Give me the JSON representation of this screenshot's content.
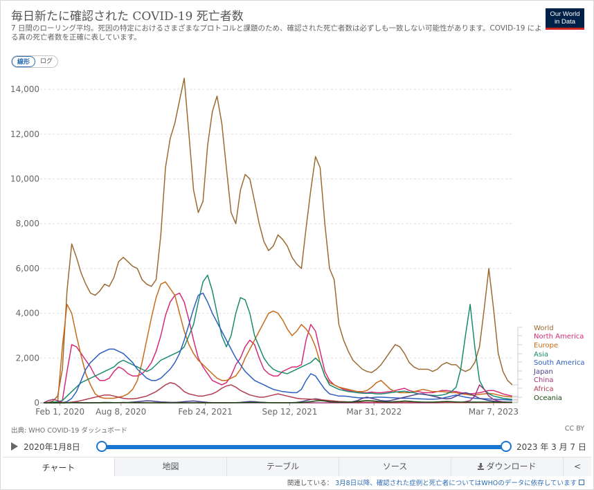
{
  "header": {
    "title": "毎日新たに確認された COVID-19 死亡者数",
    "subtitle": "7 日間のローリング平均。死因の特定におけるさまざまなプロトコルと課題のため、確認された死亡者数は必ずしも一致しない可能性があります。COVID-19 による真の死亡者数を正確に表しています。",
    "logo_line1": "Our World",
    "logo_line2": "in Data"
  },
  "scale_toggle": {
    "linear": "線形",
    "log": "ログ",
    "selected": "linear"
  },
  "chart_data": {
    "type": "line",
    "y_ticks": [
      "0",
      "2,000",
      "4,000",
      "6,000",
      "8,000",
      "10,000",
      "12,000",
      "14,000"
    ],
    "ylim": [
      0,
      14500
    ],
    "x_ticks": [
      "Feb 1, 2020",
      "Aug 8, 2020",
      "Feb 24, 2021",
      "Sep 12, 2021",
      "Mar 31, 2022",
      "Mar 7, 2023"
    ],
    "x_tick_pos": [
      0.035,
      0.165,
      0.345,
      0.525,
      0.705,
      0.96
    ],
    "grid": true,
    "legend": "right",
    "x": [
      0,
      0.01,
      0.02,
      0.03,
      0.04,
      0.05,
      0.06,
      0.07,
      0.08,
      0.09,
      0.1,
      0.11,
      0.12,
      0.13,
      0.14,
      0.15,
      0.16,
      0.17,
      0.18,
      0.19,
      0.2,
      0.21,
      0.22,
      0.23,
      0.24,
      0.25,
      0.26,
      0.27,
      0.28,
      0.29,
      0.3,
      0.31,
      0.32,
      0.33,
      0.34,
      0.35,
      0.36,
      0.37,
      0.38,
      0.39,
      0.4,
      0.41,
      0.42,
      0.43,
      0.44,
      0.45,
      0.46,
      0.47,
      0.48,
      0.49,
      0.5,
      0.51,
      0.52,
      0.53,
      0.54,
      0.55,
      0.56,
      0.57,
      0.58,
      0.59,
      0.6,
      0.61,
      0.62,
      0.63,
      0.64,
      0.65,
      0.66,
      0.67,
      0.68,
      0.69,
      0.7,
      0.71,
      0.72,
      0.73,
      0.74,
      0.75,
      0.76,
      0.77,
      0.78,
      0.79,
      0.8,
      0.81,
      0.82,
      0.83,
      0.84,
      0.85,
      0.86,
      0.87,
      0.88,
      0.89,
      0.9,
      0.91,
      0.92,
      0.93,
      0.94,
      0.95,
      0.96,
      0.97,
      0.98,
      0.99,
      1.0
    ],
    "series": [
      {
        "name": "World",
        "color": "#9a6a32",
        "values": [
          0,
          20,
          80,
          300,
          1500,
          5000,
          7100,
          6500,
          5800,
          5300,
          4900,
          4800,
          5000,
          5300,
          5200,
          5600,
          6300,
          6500,
          6300,
          6100,
          6000,
          5500,
          5300,
          5200,
          5500,
          7500,
          10500,
          11800,
          12500,
          13500,
          14500,
          12000,
          9500,
          8500,
          9000,
          11500,
          13000,
          13700,
          12500,
          10500,
          8500,
          8000,
          9500,
          10200,
          10000,
          9000,
          8000,
          7200,
          6800,
          7000,
          7500,
          7300,
          7000,
          6500,
          6200,
          6000,
          7800,
          9500,
          11000,
          10500,
          8000,
          6000,
          5500,
          3500,
          2800,
          2300,
          1900,
          1700,
          1500,
          1400,
          1350,
          1500,
          1700,
          2000,
          2300,
          2600,
          2500,
          2200,
          1800,
          1600,
          1500,
          1500,
          1500,
          1400,
          1500,
          1700,
          1800,
          1700,
          1700,
          1500,
          1400,
          1500,
          1800,
          2500,
          4200,
          6000,
          4200,
          2200,
          1400,
          1000,
          800
        ]
      },
      {
        "name": "North America",
        "color": "#d42a77",
        "values": [
          0,
          0,
          0,
          5,
          100,
          1400,
          2600,
          2500,
          2200,
          1900,
          1600,
          1200,
          1000,
          1000,
          1100,
          1400,
          1600,
          1500,
          1300,
          1200,
          1200,
          1300,
          1500,
          1800,
          2300,
          3000,
          3900,
          4500,
          4800,
          4900,
          4500,
          3700,
          2800,
          2000,
          1600,
          1300,
          1000,
          900,
          800,
          900,
          1200,
          1700,
          2000,
          2500,
          2800,
          2600,
          2000,
          1500,
          1300,
          1200,
          1200,
          1400,
          1500,
          1600,
          1600,
          1700,
          2800,
          3500,
          3200,
          2300,
          1400,
          1000,
          800,
          700,
          600,
          550,
          500,
          450,
          450,
          450,
          480,
          450,
          450,
          480,
          500,
          550,
          600,
          650,
          550,
          500,
          500,
          450,
          450,
          450,
          500,
          550,
          550,
          520,
          500,
          450,
          420,
          400,
          420,
          450,
          500,
          550,
          550,
          480,
          400,
          350,
          300
        ]
      },
      {
        "name": "Europe",
        "color": "#c66b1a",
        "values": [
          0,
          0,
          5,
          50,
          2500,
          4400,
          4000,
          3000,
          2100,
          1300,
          800,
          400,
          250,
          200,
          200,
          200,
          250,
          300,
          400,
          600,
          1000,
          1800,
          2800,
          3800,
          4700,
          5300,
          5400,
          5100,
          4800,
          4000,
          3200,
          2600,
          2200,
          1900,
          1700,
          1500,
          1300,
          1100,
          1000,
          1000,
          1100,
          1200,
          1500,
          2000,
          2400,
          2800,
          3200,
          3600,
          4000,
          4100,
          4000,
          3700,
          3300,
          3000,
          3200,
          3500,
          3300,
          3000,
          2500,
          1800,
          1200,
          900,
          800,
          700,
          650,
          600,
          550,
          500,
          500,
          550,
          700,
          900,
          1000,
          800,
          600,
          500,
          450,
          450,
          450,
          500,
          550,
          600,
          550,
          500,
          500,
          500,
          480,
          450,
          450,
          400,
          380,
          350,
          350,
          380,
          400,
          420,
          400,
          350,
          300,
          280,
          250
        ]
      },
      {
        "name": "Asia",
        "color": "#1a8a6e",
        "values": [
          0,
          10,
          30,
          50,
          100,
          300,
          500,
          700,
          900,
          1000,
          1100,
          1200,
          1300,
          1400,
          1500,
          1600,
          1800,
          1900,
          1800,
          1700,
          1600,
          1500,
          1400,
          1500,
          1700,
          1900,
          2000,
          2100,
          2200,
          2300,
          2500,
          3000,
          3500,
          4500,
          5400,
          5700,
          5000,
          4000,
          3000,
          2500,
          3000,
          4000,
          4700,
          4600,
          4000,
          3000,
          2500,
          2000,
          1700,
          1500,
          1400,
          1350,
          1300,
          1400,
          1500,
          1600,
          1700,
          1800,
          2000,
          1800,
          1200,
          800,
          700,
          600,
          550,
          500,
          480,
          450,
          430,
          420,
          430,
          400,
          400,
          420,
          450,
          480,
          500,
          520,
          480,
          450,
          400,
          380,
          350,
          330,
          320,
          350,
          400,
          500,
          700,
          1500,
          3000,
          4400,
          2500,
          1000,
          600,
          400,
          300,
          250,
          200,
          180,
          150
        ]
      },
      {
        "name": "South America",
        "color": "#2c5ec0",
        "values": [
          0,
          0,
          0,
          0,
          5,
          50,
          200,
          500,
          1000,
          1500,
          1800,
          2000,
          2200,
          2300,
          2400,
          2400,
          2300,
          2200,
          2000,
          1800,
          1500,
          1300,
          1100,
          1000,
          1000,
          1100,
          1300,
          1500,
          1800,
          2200,
          2800,
          3500,
          4200,
          4800,
          4900,
          4500,
          4000,
          3600,
          3200,
          2800,
          2400,
          2000,
          1700,
          1400,
          1200,
          1000,
          900,
          800,
          700,
          600,
          550,
          500,
          480,
          450,
          450,
          600,
          1000,
          1300,
          1200,
          900,
          600,
          400,
          350,
          300,
          300,
          280,
          250,
          230,
          220,
          220,
          230,
          250,
          250,
          240,
          230,
          220,
          210,
          200,
          200,
          190,
          180,
          170,
          160,
          160,
          170,
          200,
          250,
          300,
          350,
          300,
          250,
          220,
          200,
          190,
          180,
          170,
          160,
          150,
          140,
          130,
          120
        ]
      },
      {
        "name": "Japan",
        "color": "#4b3f8a",
        "values": [
          0,
          0,
          0,
          0,
          0,
          5,
          10,
          15,
          10,
          5,
          3,
          5,
          10,
          20,
          15,
          10,
          8,
          10,
          15,
          30,
          50,
          70,
          90,
          80,
          60,
          40,
          30,
          20,
          20,
          30,
          50,
          70,
          80,
          60,
          40,
          20,
          10,
          5,
          5,
          5,
          5,
          10,
          20,
          40,
          60,
          50,
          30,
          20,
          10,
          10,
          10,
          10,
          10,
          10,
          20,
          50,
          100,
          150,
          180,
          150,
          80,
          40,
          20,
          10,
          10,
          20,
          50,
          100,
          200,
          250,
          200,
          150,
          100,
          80,
          100,
          150,
          200,
          250,
          300,
          350,
          400,
          400,
          350,
          300,
          250,
          200,
          180,
          200,
          300,
          400,
          450,
          400,
          300,
          200,
          150,
          100,
          70,
          50,
          40,
          30,
          30
        ]
      },
      {
        "name": "China",
        "color": "#a1367b",
        "values": [
          0,
          100,
          150,
          100,
          20,
          5,
          2,
          1,
          1,
          1,
          1,
          1,
          1,
          1,
          1,
          1,
          1,
          1,
          1,
          1,
          1,
          1,
          1,
          1,
          1,
          1,
          1,
          1,
          1,
          1,
          1,
          1,
          1,
          1,
          1,
          1,
          1,
          1,
          1,
          1,
          1,
          1,
          1,
          1,
          1,
          1,
          1,
          1,
          1,
          1,
          1,
          1,
          1,
          1,
          1,
          1,
          1,
          1,
          1,
          1,
          1,
          1,
          1,
          1,
          1,
          1,
          1,
          1,
          1,
          1,
          1,
          1,
          1,
          1,
          1,
          1,
          1,
          1,
          1,
          1,
          1,
          1,
          1,
          1,
          1,
          2,
          5,
          10,
          15,
          20,
          50,
          100,
          300,
          800,
          600,
          300,
          150,
          80,
          40,
          20,
          10
        ]
      },
      {
        "name": "Africa",
        "color": "#b33b4e",
        "values": [
          0,
          0,
          0,
          0,
          0,
          10,
          30,
          60,
          100,
          150,
          200,
          250,
          300,
          350,
          350,
          300,
          250,
          200,
          180,
          180,
          200,
          250,
          300,
          400,
          500,
          650,
          800,
          900,
          850,
          700,
          500,
          400,
          350,
          300,
          300,
          350,
          400,
          500,
          650,
          750,
          800,
          700,
          550,
          450,
          350,
          300,
          250,
          250,
          300,
          350,
          400,
          350,
          300,
          250,
          200,
          180,
          170,
          160,
          150,
          140,
          120,
          100,
          80,
          60,
          50,
          40,
          35,
          30,
          28,
          25,
          25,
          25,
          22,
          20,
          20,
          20,
          20,
          18,
          18,
          15,
          15,
          15,
          15,
          12,
          12,
          12,
          12,
          10,
          10,
          10,
          10,
          10,
          10,
          10,
          10,
          10,
          10,
          10,
          10,
          10,
          10
        ]
      },
      {
        "name": "Oceania",
        "color": "#18470f",
        "values": [
          0,
          0,
          0,
          0,
          0,
          1,
          2,
          2,
          1,
          1,
          1,
          1,
          1,
          2,
          3,
          5,
          10,
          15,
          10,
          5,
          3,
          2,
          1,
          1,
          1,
          1,
          1,
          1,
          1,
          1,
          1,
          1,
          1,
          1,
          1,
          1,
          1,
          1,
          1,
          1,
          2,
          3,
          5,
          10,
          15,
          20,
          15,
          10,
          5,
          3,
          2,
          2,
          2,
          3,
          5,
          10,
          30,
          50,
          80,
          100,
          80,
          50,
          40,
          30,
          30,
          30,
          40,
          60,
          80,
          100,
          90,
          70,
          50,
          40,
          40,
          50,
          60,
          80,
          70,
          50,
          40,
          30,
          30,
          30,
          40,
          50,
          60,
          50,
          40,
          30,
          30,
          30,
          30,
          30,
          30,
          30,
          25,
          20,
          20,
          20,
          20
        ]
      }
    ]
  },
  "source": "出典: WHO COVID-19 ダッシュボード",
  "license": "CC BY",
  "timeline": {
    "start_label": "2020年1月8日",
    "end_label": "2023 年 3 月 7 日"
  },
  "tabs": [
    {
      "id": "chart",
      "label": "チャート",
      "active": true
    },
    {
      "id": "map",
      "label": "地図",
      "active": false
    },
    {
      "id": "table",
      "label": "テーブル",
      "active": false
    },
    {
      "id": "sources",
      "label": "ソース",
      "active": false
    },
    {
      "id": "download",
      "label": "ダウンロード",
      "active": false
    }
  ],
  "footer": {
    "prefix": "関連している：",
    "link": "3月8日以降、確認された症例と死亡者についてはWHOのデータに依存しています"
  }
}
